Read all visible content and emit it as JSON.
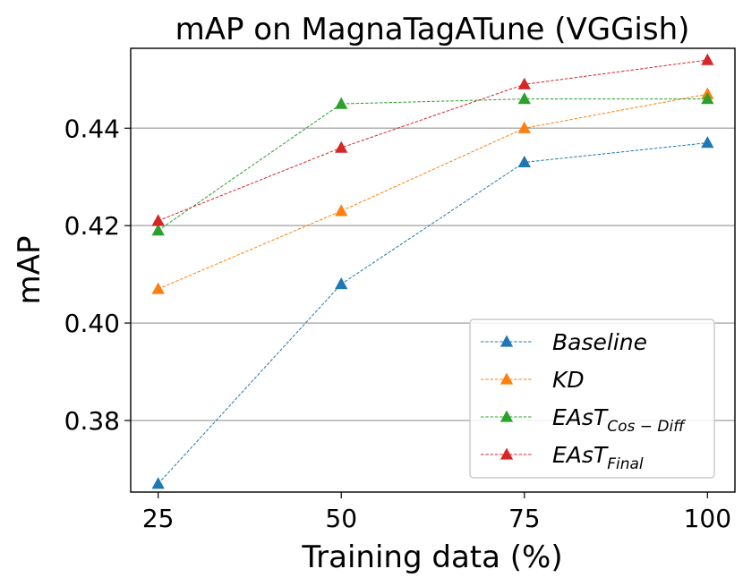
{
  "chart_data": {
    "type": "line",
    "title": "mAP on MagnaTagATune (VGGish)",
    "xlabel": "Training data (%)",
    "ylabel": "mAP",
    "x": [
      25,
      50,
      75,
      100
    ],
    "x_tick_labels": [
      "25",
      "50",
      "75",
      "100"
    ],
    "y_ticks": [
      0.38,
      0.4,
      0.42,
      0.44
    ],
    "y_tick_labels": [
      "0.38",
      "0.40",
      "0.42",
      "0.44"
    ],
    "xlim": [
      21.25,
      103.75
    ],
    "ylim": [
      0.3653,
      0.4564
    ],
    "grid": "horizontal",
    "legend_position": "lower right",
    "series": [
      {
        "name": "Baseline",
        "name_main": "Baseline",
        "name_sub": "",
        "color": "#1f77b4",
        "marker": "triangle-up",
        "line_style": "dashed",
        "values": [
          0.367,
          0.408,
          0.433,
          0.437
        ]
      },
      {
        "name": "KD",
        "name_main": "KD",
        "name_sub": "",
        "color": "#ff7f0e",
        "marker": "triangle-up",
        "line_style": "dashed",
        "values": [
          0.407,
          0.423,
          0.44,
          0.447
        ]
      },
      {
        "name": "EAsT_Cos-Diff",
        "name_main": "EAsT",
        "name_sub": "Cos − Diff",
        "color": "#2ca02c",
        "marker": "triangle-up",
        "line_style": "dashed",
        "values": [
          0.419,
          0.445,
          0.446,
          0.446
        ]
      },
      {
        "name": "EAsT_Final",
        "name_main": "EAsT",
        "name_sub": "Final",
        "color": "#d62728",
        "marker": "triangle-up",
        "line_style": "dashed",
        "values": [
          0.421,
          0.436,
          0.449,
          0.454
        ]
      }
    ]
  }
}
